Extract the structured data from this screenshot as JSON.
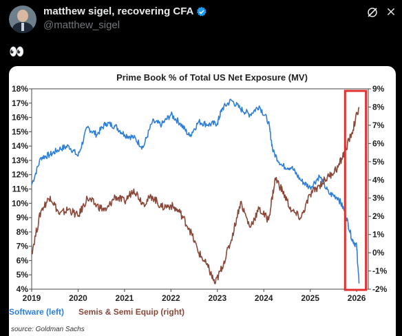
{
  "tweet": {
    "display_name": "matthew sigel, recovering CFA",
    "handle": "@matthew_sigel",
    "text": "👀",
    "icons": {
      "verified": "verified-badge-icon",
      "grok": "grok-icon",
      "close": "close-icon"
    },
    "verified_color": "#1d9bf0"
  },
  "chart_data": {
    "type": "line",
    "title": "Prime Book % of Total US Net Exposure (MV)",
    "x_ticks": [
      "2019",
      "2020",
      "2021",
      "2022",
      "2023",
      "2024",
      "2025",
      "2026"
    ],
    "xlim": [
      2019.0,
      2026.25
    ],
    "y_left": {
      "ticks": [
        "18%",
        "17%",
        "16%",
        "15%",
        "14%",
        "13%",
        "12%",
        "11%",
        "10%",
        "9%",
        "8%",
        "7%",
        "6%",
        "5%",
        "4%"
      ],
      "ylim": [
        4,
        18
      ]
    },
    "y_right": {
      "ticks": [
        "9%",
        "8%",
        "7%",
        "6%",
        "5%",
        "4%",
        "3%",
        "2%",
        "1%",
        "0%",
        "-1%",
        "-2%"
      ],
      "ylim": [
        -2,
        9
      ]
    },
    "series": [
      {
        "name": "Software (left)",
        "axis": "left",
        "color": "#2f7fd8",
        "x": [
          2019.0,
          2019.2,
          2019.4,
          2019.6,
          2019.8,
          2020.0,
          2020.2,
          2020.4,
          2020.6,
          2020.8,
          2021.0,
          2021.2,
          2021.4,
          2021.6,
          2021.8,
          2022.0,
          2022.2,
          2022.4,
          2022.6,
          2022.8,
          2023.0,
          2023.1,
          2023.3,
          2023.5,
          2023.7,
          2023.9,
          2024.1,
          2024.2,
          2024.4,
          2024.6,
          2024.8,
          2025.0,
          2025.2,
          2025.4,
          2025.6,
          2025.75,
          2025.9,
          2026.0,
          2026.05
        ],
        "y": [
          11.3,
          13.2,
          13.4,
          13.8,
          14.0,
          13.3,
          15.3,
          14.8,
          15.6,
          15.4,
          14.8,
          14.6,
          13.9,
          15.7,
          15.5,
          16.2,
          15.6,
          14.7,
          15.7,
          15.5,
          15.6,
          16.6,
          17.2,
          16.6,
          16.2,
          16.8,
          15.7,
          13.6,
          12.6,
          12.5,
          11.6,
          11.1,
          11.9,
          10.7,
          10.4,
          9.4,
          7.5,
          7.0,
          4.4
        ]
      },
      {
        "name": "Semis & Semi Equip (right)",
        "axis": "right",
        "color": "#8a4738",
        "x": [
          2019.0,
          2019.2,
          2019.4,
          2019.6,
          2019.8,
          2020.0,
          2020.2,
          2020.4,
          2020.6,
          2020.8,
          2021.0,
          2021.2,
          2021.4,
          2021.6,
          2021.8,
          2022.0,
          2022.2,
          2022.4,
          2022.6,
          2022.8,
          2022.95,
          2023.1,
          2023.3,
          2023.5,
          2023.7,
          2023.9,
          2024.1,
          2024.25,
          2024.4,
          2024.6,
          2024.8,
          2025.0,
          2025.2,
          2025.4,
          2025.6,
          2025.75,
          2025.9,
          2026.05
        ],
        "y": [
          0.0,
          2.3,
          3.1,
          2.1,
          2.4,
          2.0,
          3.0,
          2.6,
          2.3,
          3.1,
          2.8,
          3.5,
          2.7,
          3.1,
          2.5,
          2.6,
          2.2,
          1.3,
          0.0,
          -0.8,
          -1.7,
          -0.8,
          0.7,
          2.8,
          1.4,
          2.4,
          1.8,
          4.1,
          3.4,
          2.3,
          1.9,
          3.2,
          3.7,
          4.2,
          4.7,
          5.6,
          6.6,
          8.0
        ]
      }
    ],
    "legend": [
      "Software (left)",
      "Semis & Semi Equip (right)"
    ],
    "legend_position": "bottom-left",
    "highlight_box": {
      "x0": 2025.75,
      "x1": 2026.2,
      "color": "#e03131"
    },
    "source_note": "source: Goldman Sachs"
  }
}
